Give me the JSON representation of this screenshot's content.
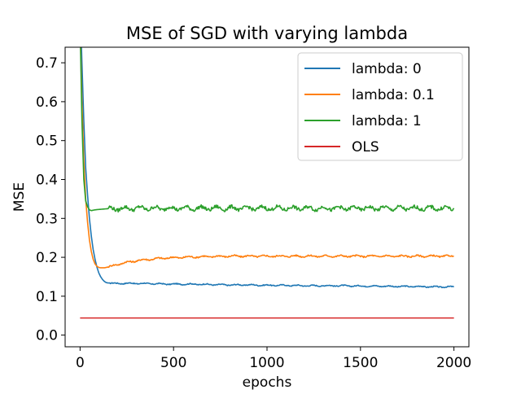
{
  "chart_data": {
    "type": "line",
    "title": "MSE of SGD with varying lambda",
    "xlabel": "epochs",
    "ylabel": "MSE",
    "xlim": [
      -80,
      2080
    ],
    "ylim": [
      -0.03,
      0.74
    ],
    "xticks": [
      0,
      500,
      1000,
      1500,
      2000
    ],
    "yticks": [
      0.0,
      0.1,
      0.2,
      0.3,
      0.4,
      0.5,
      0.6,
      0.7
    ],
    "xtick_labels": [
      "0",
      "500",
      "1000",
      "1500",
      "2000"
    ],
    "ytick_labels": [
      "0.0",
      "0.1",
      "0.2",
      "0.3",
      "0.4",
      "0.5",
      "0.6",
      "0.7"
    ],
    "grid": false,
    "legend_position": "top-right",
    "series": [
      {
        "name": "lambda: 0",
        "color": "#1f77b4",
        "x": [
          0,
          10,
          20,
          30,
          40,
          50,
          60,
          70,
          80,
          90,
          100,
          110,
          120,
          130,
          140,
          150,
          175,
          200,
          250,
          300,
          400,
          500,
          600,
          700,
          800,
          900,
          1000,
          1100,
          1200,
          1300,
          1400,
          1500,
          1600,
          1700,
          1800,
          1900,
          2000
        ],
        "y": [
          0.85,
          0.7,
          0.55,
          0.43,
          0.36,
          0.3,
          0.255,
          0.22,
          0.195,
          0.175,
          0.16,
          0.15,
          0.143,
          0.138,
          0.135,
          0.134,
          0.133,
          0.133,
          0.133,
          0.133,
          0.132,
          0.131,
          0.131,
          0.13,
          0.129,
          0.129,
          0.128,
          0.128,
          0.127,
          0.127,
          0.127,
          0.126,
          0.126,
          0.125,
          0.125,
          0.124,
          0.124
        ]
      },
      {
        "name": "lambda: 0.1",
        "color": "#ff7f0e",
        "x": [
          0,
          10,
          20,
          30,
          40,
          50,
          60,
          70,
          80,
          90,
          100,
          110,
          120,
          130,
          140,
          150,
          175,
          200,
          250,
          300,
          350,
          400,
          450,
          500,
          550,
          600,
          700,
          800,
          900,
          1000,
          1100,
          1200,
          1300,
          1400,
          1500,
          1600,
          1700,
          1800,
          1900,
          2000
        ],
        "y": [
          0.8,
          0.6,
          0.45,
          0.35,
          0.29,
          0.245,
          0.215,
          0.195,
          0.183,
          0.177,
          0.174,
          0.173,
          0.173,
          0.173,
          0.174,
          0.175,
          0.178,
          0.182,
          0.187,
          0.191,
          0.194,
          0.196,
          0.198,
          0.199,
          0.2,
          0.201,
          0.202,
          0.203,
          0.203,
          0.203,
          0.203,
          0.203,
          0.203,
          0.203,
          0.203,
          0.203,
          0.203,
          0.203,
          0.203,
          0.203
        ]
      },
      {
        "name": "lambda: 1",
        "color": "#2ca02c",
        "x": [
          0,
          10,
          20,
          30,
          40,
          50,
          60,
          80,
          100,
          150,
          200,
          300,
          400,
          500,
          600,
          700,
          800,
          900,
          1000,
          1100,
          1200,
          1300,
          1400,
          1500,
          1600,
          1700,
          1800,
          1900,
          2000
        ],
        "y": [
          0.8,
          0.55,
          0.4,
          0.345,
          0.33,
          0.322,
          0.32,
          0.322,
          0.323,
          0.325,
          0.325,
          0.326,
          0.326,
          0.326,
          0.326,
          0.326,
          0.326,
          0.326,
          0.326,
          0.326,
          0.326,
          0.326,
          0.326,
          0.326,
          0.326,
          0.326,
          0.326,
          0.326,
          0.326
        ]
      },
      {
        "name": "OLS",
        "color": "#d62728",
        "x": [
          0,
          2000
        ],
        "y": [
          0.044,
          0.044
        ]
      }
    ]
  }
}
